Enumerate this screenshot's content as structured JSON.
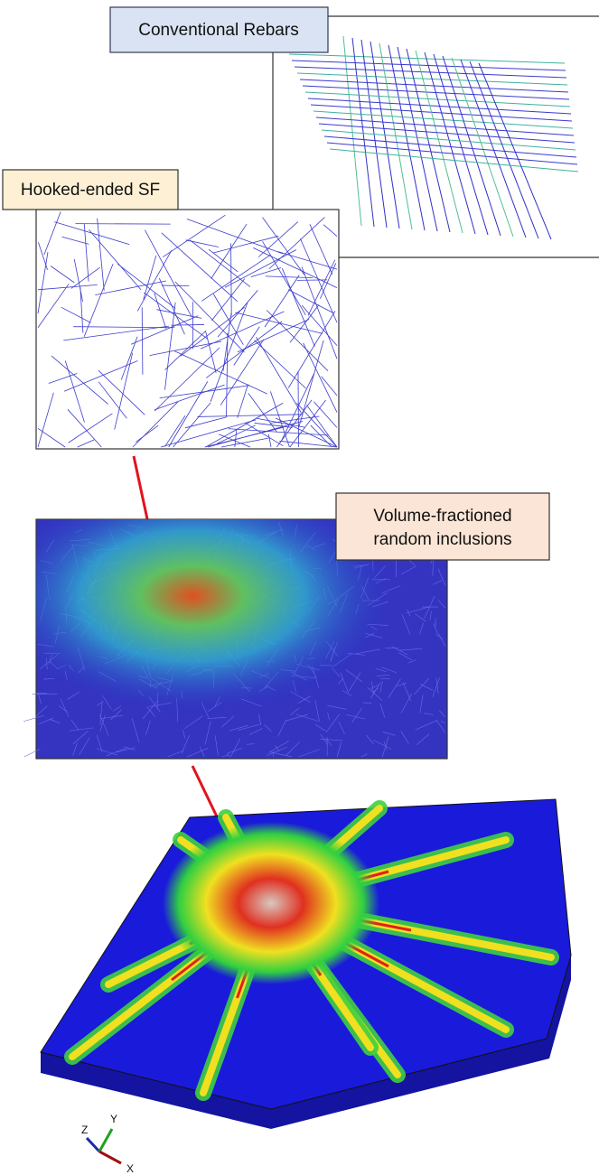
{
  "labels": {
    "rebars": "Conventional Rebars",
    "fibers": "Hooked-ended SF",
    "inclusions": [
      "Volume-fractioned",
      "random inclusions"
    ]
  },
  "triad": {
    "z": "Z",
    "y": "Y",
    "x": "X"
  }
}
